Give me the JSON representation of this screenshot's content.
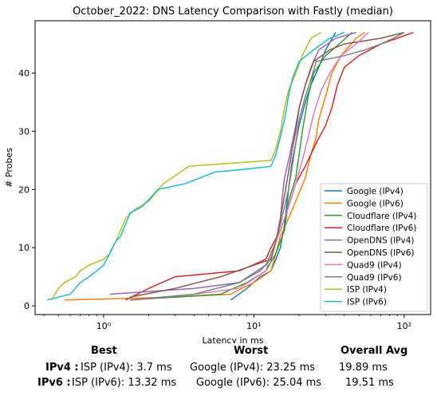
{
  "chart_data": {
    "type": "line",
    "title": "October_2022: DNS Latency Comparison with Fastly (median)",
    "xlabel": "Latency in ms",
    "ylabel": "# Probes",
    "xscale": "log",
    "xlim": [
      0.35,
      150
    ],
    "ylim": [
      -1.5,
      49
    ],
    "xticks": [
      {
        "v": 1,
        "label": "10⁰"
      },
      {
        "v": 10,
        "label": "10¹"
      },
      {
        "v": 100,
        "label": "10²"
      }
    ],
    "yticks": [
      0,
      10,
      20,
      30,
      40
    ],
    "grid": false,
    "legend": "lower-right",
    "series": [
      {
        "name": "Google (IPv4)",
        "color": "#1f77b4",
        "points": [
          [
            7,
            1
          ],
          [
            9,
            3
          ],
          [
            11,
            5
          ],
          [
            13,
            6
          ],
          [
            14,
            8
          ],
          [
            15,
            10
          ],
          [
            16,
            14
          ],
          [
            17,
            20
          ],
          [
            18,
            25
          ],
          [
            19,
            28
          ],
          [
            20,
            31
          ],
          [
            21,
            33
          ],
          [
            22,
            35
          ],
          [
            24,
            38
          ],
          [
            27,
            41
          ],
          [
            30,
            44
          ],
          [
            35,
            47
          ]
        ]
      },
      {
        "name": "Google (IPv6)",
        "color": "#ff7f0e",
        "points": [
          [
            0.55,
            1
          ],
          [
            3,
            1.5
          ],
          [
            7,
            2
          ],
          [
            10,
            4
          ],
          [
            13,
            6
          ],
          [
            14,
            9
          ],
          [
            15,
            12
          ],
          [
            17,
            15
          ],
          [
            19,
            18
          ],
          [
            22,
            22
          ],
          [
            24,
            26
          ],
          [
            26,
            29
          ],
          [
            27,
            32
          ],
          [
            30,
            36
          ],
          [
            33,
            40
          ],
          [
            38,
            43
          ],
          [
            48,
            46
          ],
          [
            55,
            47
          ]
        ]
      },
      {
        "name": "Cloudflare (IPv4)",
        "color": "#2ca02c",
        "points": [
          [
            1.5,
            1
          ],
          [
            6,
            2
          ],
          [
            9,
            4
          ],
          [
            12,
            6
          ],
          [
            14,
            9
          ],
          [
            16,
            13
          ],
          [
            17,
            18
          ],
          [
            19,
            22
          ],
          [
            20,
            26
          ],
          [
            21,
            30
          ],
          [
            22,
            33
          ],
          [
            23,
            36
          ],
          [
            25,
            40
          ],
          [
            30,
            43
          ],
          [
            37,
            45
          ],
          [
            45,
            47
          ]
        ]
      },
      {
        "name": "Cloudflare (IPv6)",
        "color": "#d62728",
        "points": [
          [
            1.4,
            1
          ],
          [
            2,
            3
          ],
          [
            3,
            5
          ],
          [
            8,
            6
          ],
          [
            12,
            8
          ],
          [
            13,
            10
          ],
          [
            15,
            13
          ],
          [
            17,
            17
          ],
          [
            19,
            21
          ],
          [
            22,
            24
          ],
          [
            26,
            28
          ],
          [
            30,
            31
          ],
          [
            33,
            34
          ],
          [
            36,
            38
          ],
          [
            40,
            41
          ],
          [
            50,
            43
          ],
          [
            70,
            45
          ],
          [
            90,
            46
          ],
          [
            115,
            47
          ]
        ]
      },
      {
        "name": "OpenDNS (IPv4)",
        "color": "#9467bd",
        "points": [
          [
            1.1,
            2
          ],
          [
            4,
            3
          ],
          [
            8,
            4
          ],
          [
            11,
            6
          ],
          [
            13,
            8
          ],
          [
            14,
            11
          ],
          [
            15,
            15
          ],
          [
            15.5,
            19
          ],
          [
            16,
            22
          ],
          [
            17,
            25
          ],
          [
            18,
            28
          ],
          [
            19,
            31
          ],
          [
            20,
            34
          ],
          [
            22,
            38
          ],
          [
            24,
            41
          ],
          [
            27,
            44
          ],
          [
            35,
            46
          ],
          [
            48,
            47
          ]
        ]
      },
      {
        "name": "OpenDNS (IPv6)",
        "color": "#8c564b",
        "points": [
          [
            1.5,
            1.5
          ],
          [
            3,
            3
          ],
          [
            6,
            5
          ],
          [
            10,
            7
          ],
          [
            13,
            8
          ],
          [
            14,
            11
          ],
          [
            15,
            15
          ],
          [
            16,
            19
          ],
          [
            17,
            23
          ],
          [
            18,
            27
          ],
          [
            19,
            30
          ],
          [
            20,
            34
          ],
          [
            22,
            38
          ],
          [
            25,
            42
          ],
          [
            32,
            44
          ],
          [
            40,
            45
          ],
          [
            70,
            46
          ],
          [
            100,
            47
          ]
        ]
      },
      {
        "name": "Quad9 (IPv4)",
        "color": "#e377c2",
        "points": [
          [
            1.6,
            1
          ],
          [
            4,
            2
          ],
          [
            8,
            3
          ],
          [
            12,
            6
          ],
          [
            13,
            9
          ],
          [
            15,
            13
          ],
          [
            17,
            17
          ],
          [
            19,
            21
          ],
          [
            21,
            25
          ],
          [
            23,
            29
          ],
          [
            25,
            33
          ],
          [
            28,
            37
          ],
          [
            32,
            40
          ],
          [
            38,
            43
          ],
          [
            48,
            45
          ],
          [
            58,
            47
          ]
        ]
      },
      {
        "name": "Quad9 (IPv6)",
        "color": "#7f7f7f",
        "points": [
          [
            1.5,
            1
          ],
          [
            4,
            2
          ],
          [
            8,
            4
          ],
          [
            12,
            7
          ],
          [
            13,
            9
          ],
          [
            14,
            11
          ],
          [
            15,
            14
          ],
          [
            16,
            17
          ],
          [
            17,
            20
          ],
          [
            18,
            24
          ],
          [
            19,
            28
          ],
          [
            20,
            32
          ],
          [
            22,
            36
          ],
          [
            24,
            39
          ],
          [
            26,
            42
          ],
          [
            40,
            43
          ],
          [
            55,
            44
          ],
          [
            70,
            45
          ],
          [
            85,
            46
          ],
          [
            100,
            47
          ]
        ]
      },
      {
        "name": "ISP (IPv4)",
        "color": "#bcbd22",
        "points": [
          [
            0.45,
            1
          ],
          [
            0.5,
            3
          ],
          [
            0.55,
            4
          ],
          [
            0.65,
            5
          ],
          [
            0.7,
            6
          ],
          [
            0.8,
            7
          ],
          [
            1.0,
            8
          ],
          [
            1.1,
            9
          ],
          [
            1.2,
            11
          ],
          [
            1.3,
            13
          ],
          [
            1.4,
            15
          ],
          [
            1.6,
            16.5
          ],
          [
            2.0,
            18
          ],
          [
            2.5,
            21
          ],
          [
            3.7,
            24
          ],
          [
            7,
            24.5
          ],
          [
            13,
            25
          ],
          [
            14,
            27
          ],
          [
            15,
            30
          ],
          [
            16,
            34
          ],
          [
            17,
            37
          ],
          [
            19,
            40
          ],
          [
            21,
            43
          ],
          [
            24,
            46
          ],
          [
            28,
            47
          ]
        ]
      },
      {
        "name": "ISP (IPv6)",
        "color": "#17becf",
        "points": [
          [
            0.42,
            1
          ],
          [
            0.6,
            2
          ],
          [
            0.7,
            4
          ],
          [
            0.8,
            5
          ],
          [
            0.9,
            6
          ],
          [
            1.0,
            7
          ],
          [
            1.1,
            9
          ],
          [
            1.2,
            11
          ],
          [
            1.3,
            12
          ],
          [
            1.4,
            14
          ],
          [
            1.5,
            16
          ],
          [
            1.8,
            17
          ],
          [
            2.3,
            20
          ],
          [
            3.5,
            21
          ],
          [
            5.5,
            23
          ],
          [
            9,
            23.5
          ],
          [
            13,
            24
          ],
          [
            14,
            26
          ],
          [
            15,
            29
          ],
          [
            16,
            32
          ],
          [
            17,
            36
          ],
          [
            18,
            39
          ],
          [
            20,
            42
          ],
          [
            25,
            44
          ],
          [
            32,
            46
          ],
          [
            40,
            47
          ]
        ]
      }
    ]
  },
  "summary": {
    "col_best": "Best",
    "col_worst": "Worst",
    "col_avg": "Overall Avg",
    "ipv4_label": "IPv4 :",
    "ipv4_best": "ISP (IPv4): 3.7 ms",
    "ipv4_worst": "Google (IPv4): 23.25 ms",
    "ipv4_avg": "19.89 ms",
    "ipv6_label": "IPv6 :",
    "ipv6_best": "ISP (IPv6): 13.32 ms",
    "ipv6_worst": "Google (IPv6): 25.04 ms",
    "ipv6_avg": "19.51 ms"
  }
}
